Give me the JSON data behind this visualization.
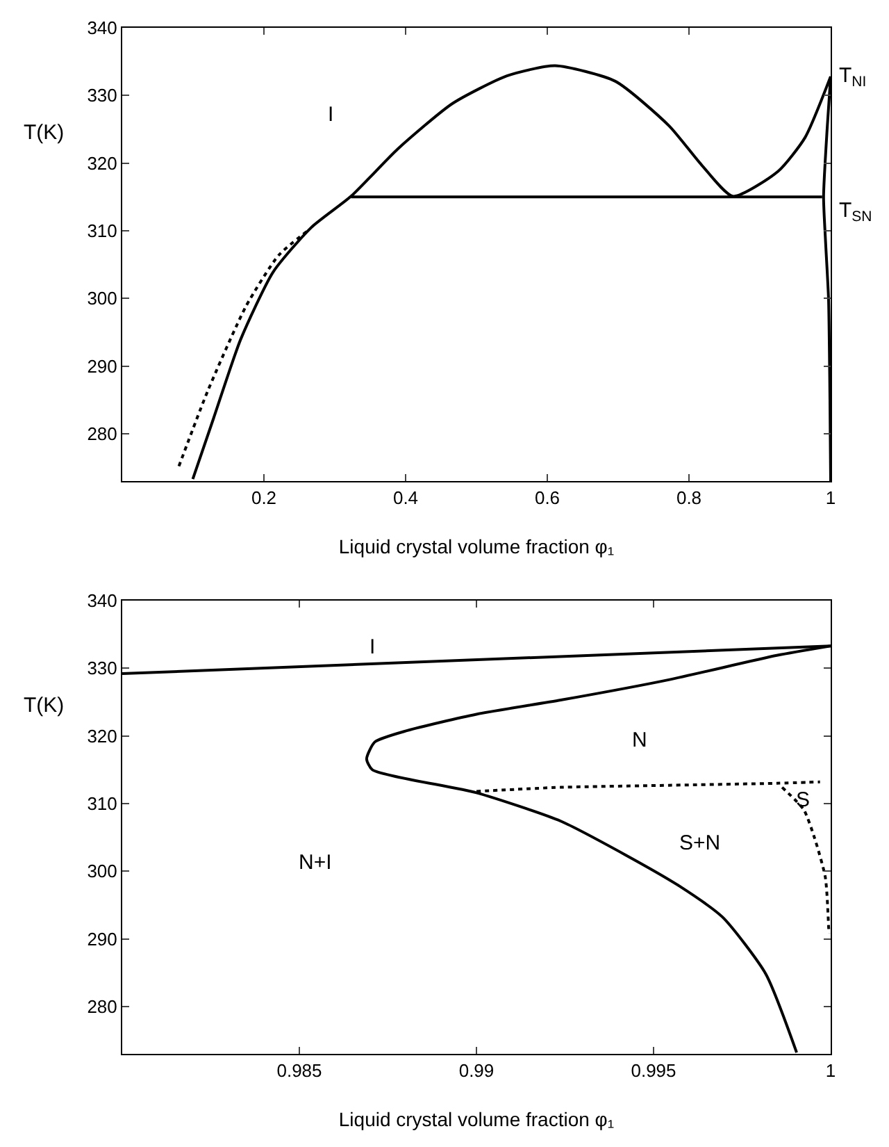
{
  "chart_data": [
    {
      "type": "line",
      "xlabel": "Liquid crystal volume fraction φ₁",
      "ylabel": "T(K)",
      "xlim": [
        0,
        1
      ],
      "ylim": [
        273,
        340
      ],
      "xticks": [
        0.2,
        0.4,
        0.6,
        0.8,
        1
      ],
      "yticks": [
        280,
        290,
        300,
        310,
        320,
        330,
        340
      ],
      "grid": false,
      "marker": "none",
      "series": [
        {
          "color": "#000000",
          "line_style": "solid",
          "x": [
            0.0996,
            0.129,
            0.167,
            0.213,
            0.267,
            0.323,
            0.389,
            0.466,
            0.543,
            0.611,
            0.696,
            0.772,
            0.818,
            0.862,
            0.926,
            0.964,
            1.0
          ],
          "values": [
            273.3,
            282.3,
            293.9,
            303.9,
            310.5,
            315.1,
            322.1,
            328.8,
            332.9,
            334.4,
            332.1,
            325.5,
            319.7,
            315.1,
            318.8,
            323.8,
            332.8
          ]
        },
        {
          "color": "#000000",
          "line_style": "solid",
          "x": [
            0.323,
            0.988
          ],
          "values": [
            315,
            315
          ]
        },
        {
          "color": "#000000",
          "line_style": "solid",
          "x": [
            1.0,
            0.995,
            0.99,
            0.993,
            0.997,
            0.999,
            1.0
          ],
          "values": [
            332.8,
            325,
            315,
            308,
            300,
            285,
            273
          ]
        },
        {
          "color": "#000000",
          "line_style": "dotted",
          "x": [
            0.08,
            0.121,
            0.175,
            0.221,
            0.263
          ],
          "values": [
            275.2,
            286.4,
            298.9,
            306.4,
            310.1
          ]
        }
      ],
      "annotations": [
        "I",
        {
          "text": "T$_{NI}$",
          "x": 1.0,
          "y": 332.8
        },
        {
          "text": "T$_{SN}$",
          "x": 1.0,
          "y": 312.8
        }
      ]
    },
    {
      "type": "line",
      "xlabel": "Liquid crystal volume fraction φ₁",
      "ylabel": "T(K)",
      "xlim": [
        0.98,
        1
      ],
      "ylim": [
        273,
        340
      ],
      "xticks": [
        0.985,
        0.99,
        0.995,
        1
      ],
      "yticks": [
        280,
        290,
        300,
        310,
        320,
        330,
        340
      ],
      "grid": false,
      "marker": "none",
      "series": [
        {
          "color": "#000000",
          "line_style": "solid",
          "x": [
            0.98,
            1.0
          ],
          "values": [
            329.2,
            333.3
          ]
        },
        {
          "color": "#000000",
          "line_style": "solid",
          "x": [
            1.0,
            0.99848,
            0.99543,
            0.99238,
            0.99,
            0.98805,
            0.98713,
            0.9869,
            0.98706,
            0.99,
            0.99238,
            0.99421,
            0.99573,
            0.99695,
            0.99817,
            0.99904
          ],
          "values": [
            333.3,
            331.9,
            328.3,
            325.3,
            323.2,
            320.8,
            319.1,
            316.6,
            315,
            311.6,
            307.4,
            302.4,
            297.8,
            293.2,
            284.8,
            273.2
          ]
        },
        {
          "color": "#000000",
          "line_style": "dotted",
          "x": [
            0.99,
            0.99238,
            0.99543,
            0.99848,
            0.9997
          ],
          "values": [
            311.8,
            312.4,
            312.7,
            313,
            313.2
          ]
        },
        {
          "color": "#000000",
          "line_style": "dotted",
          "x": [
            0.99863,
            0.99924,
            0.99954,
            0.99985,
            0.99995
          ],
          "values": [
            312.4,
            309.1,
            305,
            299.1,
            290.8
          ]
        }
      ],
      "annotations": [
        "I",
        "N",
        "S",
        "S+N",
        "N+I"
      ]
    }
  ]
}
